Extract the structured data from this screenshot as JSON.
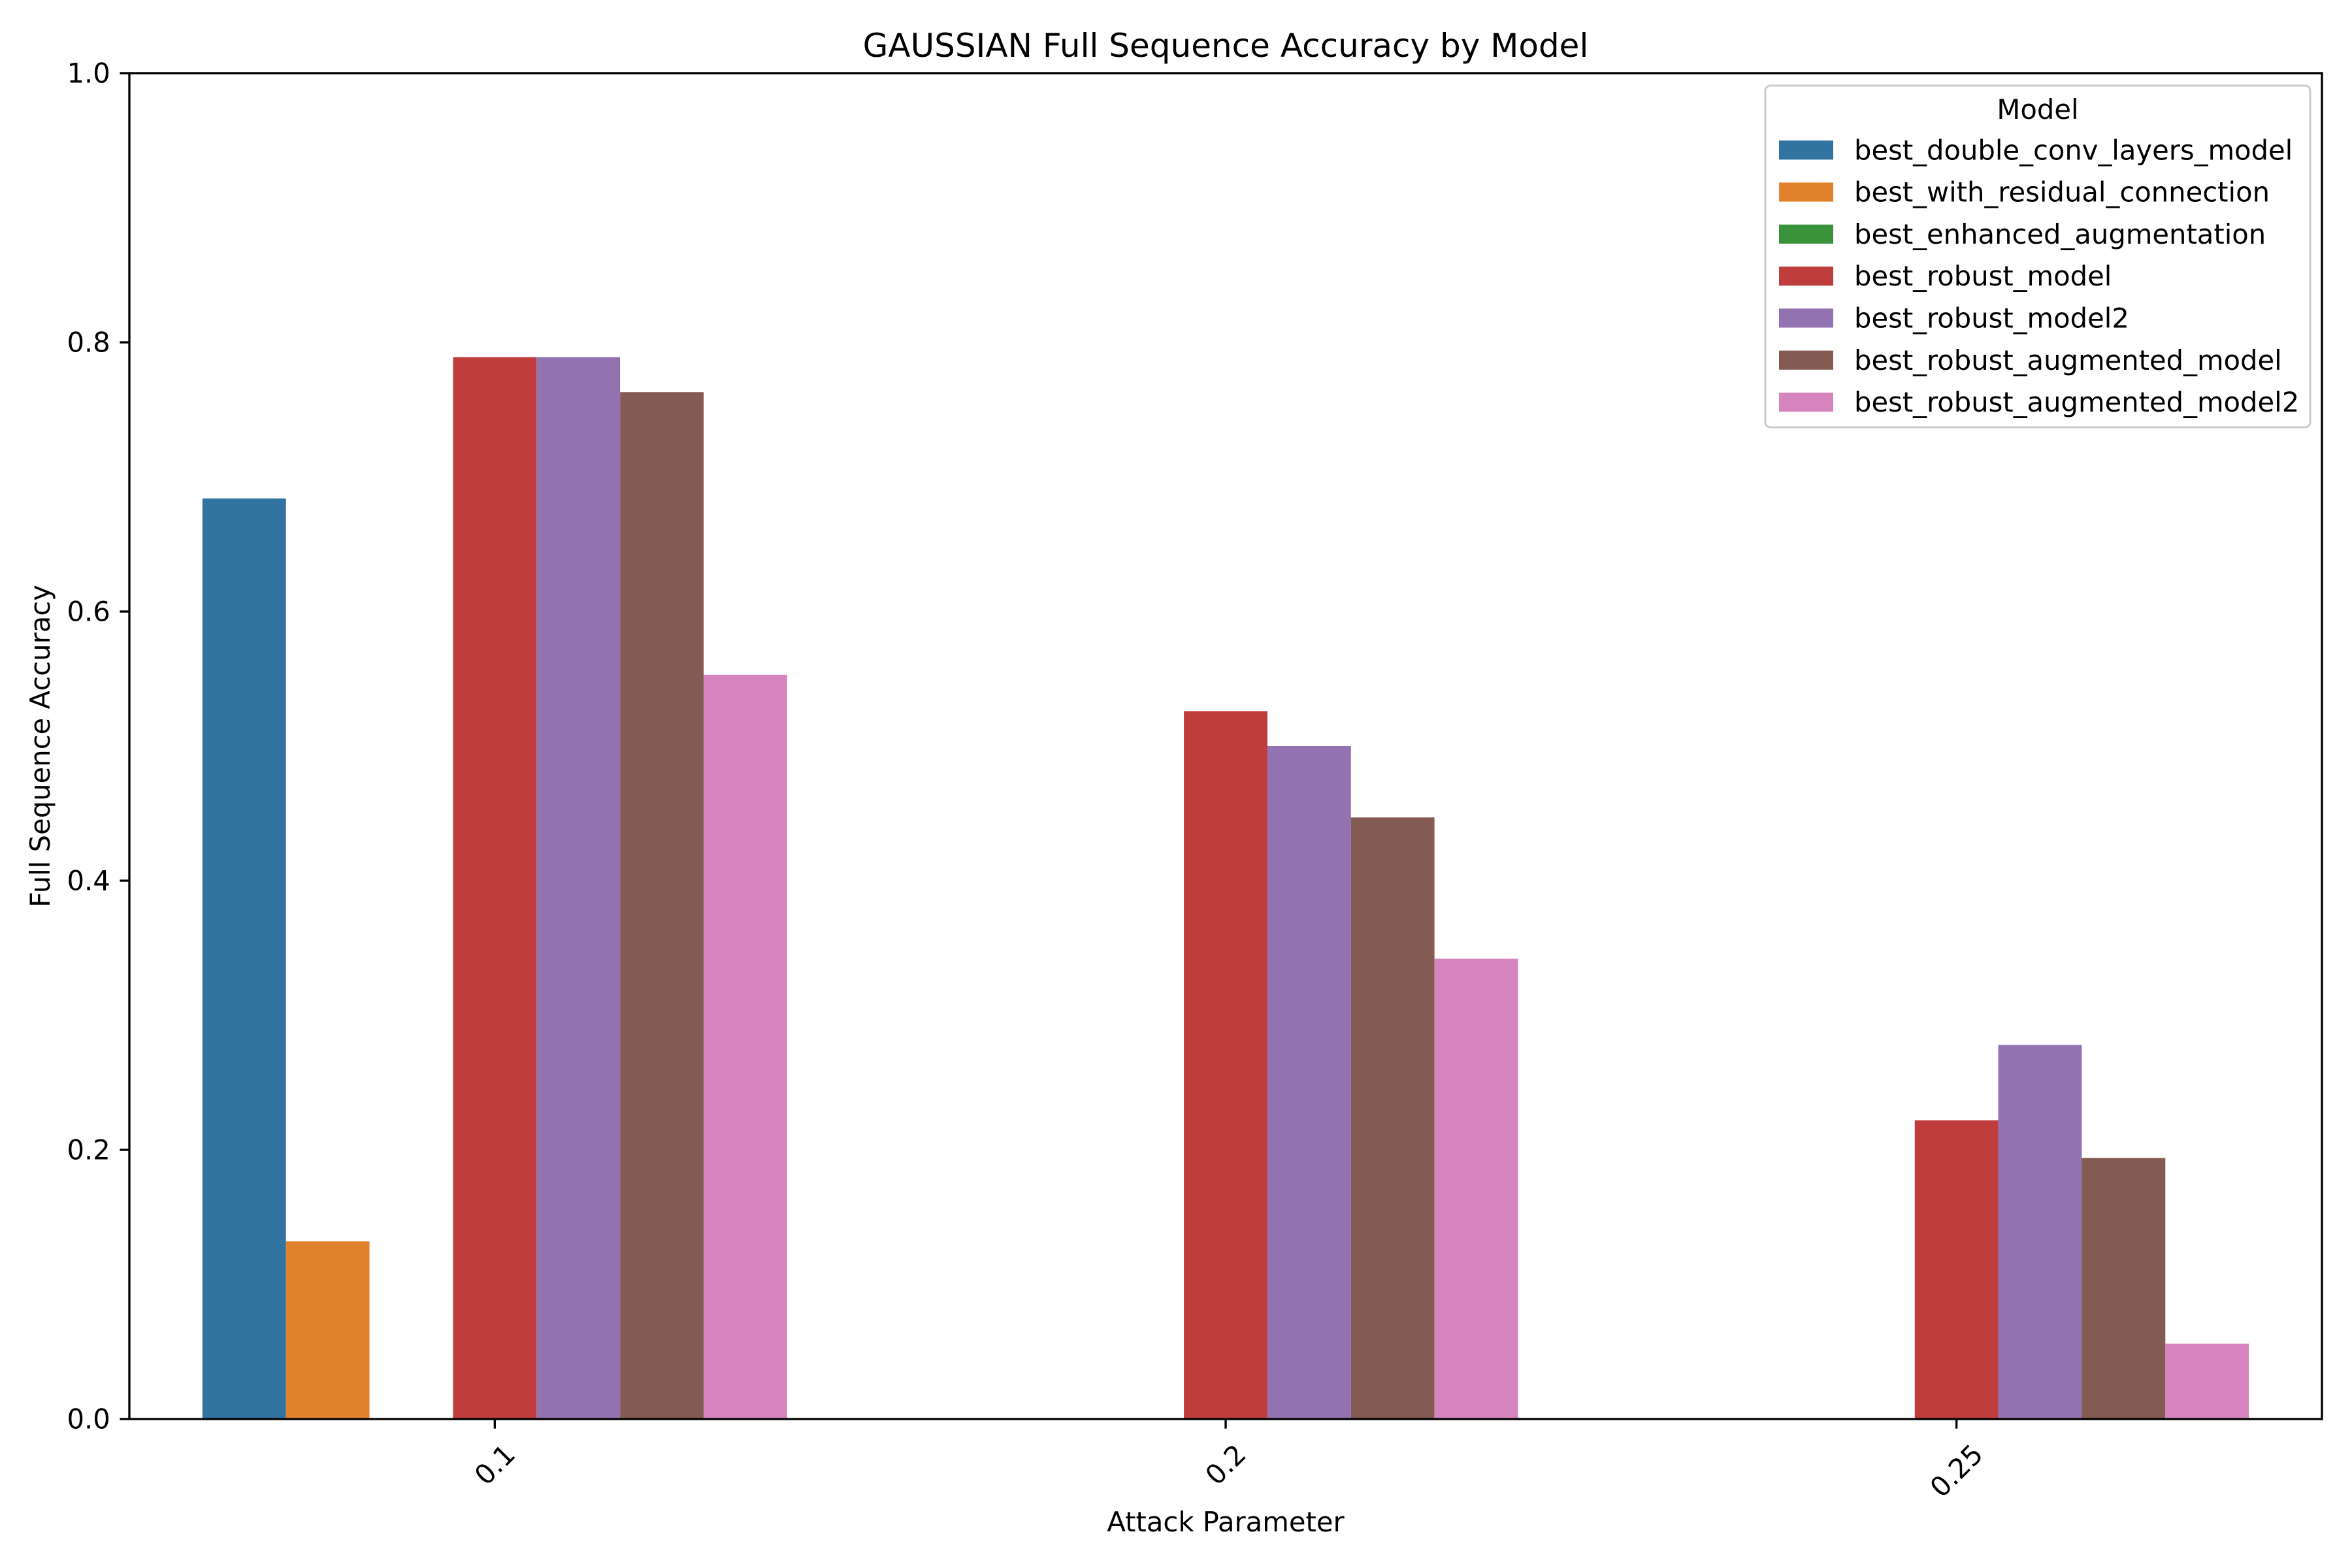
{
  "chart_data": {
    "type": "bar",
    "title": "GAUSSIAN Full Sequence Accuracy by Model",
    "xlabel": "Attack Parameter",
    "ylabel": "Full Sequence Accuracy",
    "categories": [
      "0.1",
      "0.2",
      "0.25"
    ],
    "ylim": [
      0,
      1.0
    ],
    "yticks": [
      "0.0",
      "0.2",
      "0.4",
      "0.6",
      "0.8",
      "1.0"
    ],
    "grid": false,
    "legend": {
      "title": "Model",
      "position": "upper right"
    },
    "series": [
      {
        "name": "best_double_conv_layers_model",
        "color": "#3274a1",
        "values": [
          0.684,
          0.0,
          0.0
        ]
      },
      {
        "name": "best_with_residual_connection",
        "color": "#e1812c",
        "values": [
          0.132,
          0.0,
          0.0
        ]
      },
      {
        "name": "best_enhanced_augmentation",
        "color": "#3a923a",
        "values": [
          0.0,
          0.0,
          0.0
        ]
      },
      {
        "name": "best_robust_model",
        "color": "#c03d3e",
        "values": [
          0.789,
          0.526,
          0.222
        ]
      },
      {
        "name": "best_robust_model2",
        "color": "#9372b2",
        "values": [
          0.789,
          0.5,
          0.278
        ]
      },
      {
        "name": "best_robust_augmented_model",
        "color": "#845b53",
        "values": [
          0.763,
          0.447,
          0.194
        ]
      },
      {
        "name": "best_robust_augmented_model2",
        "color": "#d684bd",
        "values": [
          0.553,
          0.342,
          0.056
        ]
      }
    ]
  }
}
